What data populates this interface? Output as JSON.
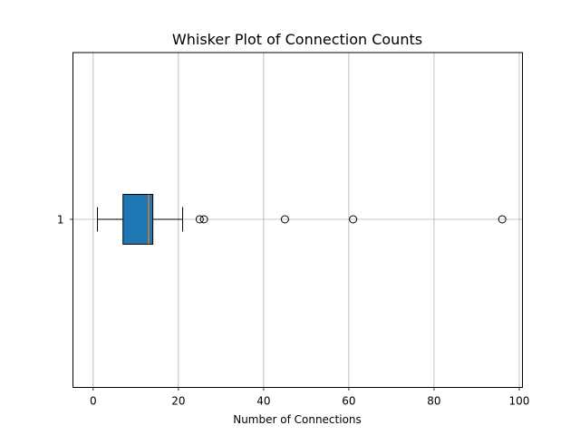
{
  "chart_data": {
    "type": "box",
    "orientation": "horizontal",
    "title": "Whisker Plot of Connection Counts",
    "xlabel": "Number of Connections",
    "ylabel": "",
    "xlim": [
      -4.75,
      100.75
    ],
    "x_ticks": [
      0,
      20,
      40,
      60,
      80,
      100
    ],
    "y_tick_labels": [
      "1"
    ],
    "grid": true,
    "box": {
      "label": "1",
      "whisker_low": 1,
      "q1": 7,
      "median": 13,
      "q3": 14,
      "whisker_high": 21,
      "outliers": [
        25,
        26,
        45,
        61,
        96
      ]
    },
    "colors": {
      "box_fill": "#1f77b4",
      "median_line": "#ff7f0e",
      "grid": "#b0b0b0",
      "edges": "#000000"
    }
  }
}
